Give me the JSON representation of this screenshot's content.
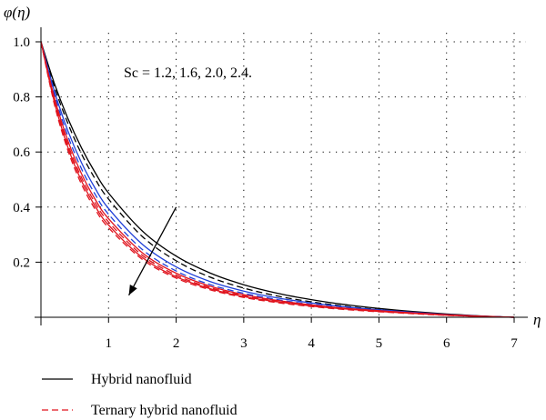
{
  "chart_data": {
    "type": "line",
    "ylabel": "φ(η)",
    "xlabel": "η",
    "xlim": [
      0,
      7
    ],
    "ylim": [
      0,
      1.05
    ],
    "x_ticks": [
      "1",
      "2",
      "3",
      "4",
      "5",
      "6",
      "7"
    ],
    "y_ticks": [
      "0.2",
      "0.4",
      "0.6",
      "0.8",
      "1.0"
    ],
    "grid": true,
    "annotation": "Sc = 1.2, 1.6, 2.0, 2.4.",
    "arrow": {
      "from": [
        2.0,
        0.4
      ],
      "to": [
        1.3,
        0.08
      ]
    },
    "colors": {
      "black": "#000000",
      "blue": "#1f3fd8",
      "red": "#e0141e"
    },
    "legend": [
      {
        "label": "Hybrid nanofluid",
        "style": "solid"
      },
      {
        "label": "Ternary hybrid nanofluid",
        "style": "dashed",
        "color": "#e0141e"
      }
    ],
    "x": [
      0,
      0.2,
      0.4,
      0.6,
      0.8,
      1,
      1.5,
      2,
      2.5,
      3,
      3.5,
      4,
      4.5,
      5,
      5.5,
      6,
      6.5,
      7
    ],
    "series": [
      {
        "fluid": "Hybrid nanofluid",
        "Sc": 1.2,
        "color": "#000000",
        "dash": "solid",
        "values": [
          1.0,
          0.848,
          0.721,
          0.615,
          0.526,
          0.451,
          0.313,
          0.222,
          0.161,
          0.118,
          0.087,
          0.064,
          0.046,
          0.032,
          0.021,
          0.012,
          0.005,
          0.0
        ]
      },
      {
        "fluid": "Ternary hybrid nanofluid",
        "Sc": 1.2,
        "color": "#000000",
        "dash": "dashed",
        "values": [
          1.0,
          0.836,
          0.703,
          0.593,
          0.503,
          0.429,
          0.293,
          0.205,
          0.146,
          0.106,
          0.077,
          0.056,
          0.04,
          0.028,
          0.018,
          0.01,
          0.004,
          0.0
        ]
      },
      {
        "fluid": "Hybrid nanofluid",
        "Sc": 1.6,
        "color": "#1f3fd8",
        "dash": "solid",
        "values": [
          1.0,
          0.82,
          0.676,
          0.561,
          0.469,
          0.395,
          0.265,
          0.183,
          0.13,
          0.095,
          0.07,
          0.052,
          0.038,
          0.027,
          0.018,
          0.01,
          0.004,
          0.0
        ]
      },
      {
        "fluid": "Ternary hybrid nanofluid",
        "Sc": 1.6,
        "color": "#1f3fd8",
        "dash": "dashed",
        "values": [
          1.0,
          0.808,
          0.657,
          0.539,
          0.447,
          0.374,
          0.246,
          0.168,
          0.119,
          0.087,
          0.064,
          0.047,
          0.034,
          0.024,
          0.016,
          0.009,
          0.004,
          0.0
        ]
      },
      {
        "fluid": "Hybrid nanofluid",
        "Sc": 2.0,
        "color": "#e0141e",
        "dash": "solid",
        "values": [
          1.0,
          0.796,
          0.64,
          0.521,
          0.429,
          0.358,
          0.234,
          0.16,
          0.113,
          0.082,
          0.061,
          0.045,
          0.033,
          0.024,
          0.016,
          0.009,
          0.004,
          0.0
        ]
      },
      {
        "fluid": "Ternary hybrid nanofluid",
        "Sc": 2.0,
        "color": "#e0141e",
        "dash": "dashed",
        "values": [
          1.0,
          0.786,
          0.627,
          0.507,
          0.416,
          0.346,
          0.225,
          0.153,
          0.108,
          0.078,
          0.058,
          0.043,
          0.031,
          0.022,
          0.015,
          0.008,
          0.003,
          0.0
        ]
      },
      {
        "fluid": "Hybrid nanofluid",
        "Sc": 2.4,
        "color": "#e0141e",
        "dash": "solid",
        "values": [
          1.0,
          0.78,
          0.616,
          0.495,
          0.404,
          0.335,
          0.217,
          0.147,
          0.104,
          0.075,
          0.056,
          0.041,
          0.03,
          0.021,
          0.014,
          0.008,
          0.003,
          0.0
        ]
      },
      {
        "fluid": "Ternary hybrid nanofluid",
        "Sc": 2.4,
        "color": "#e0141e",
        "dash": "dashed",
        "values": [
          1.0,
          0.772,
          0.605,
          0.483,
          0.393,
          0.325,
          0.21,
          0.142,
          0.1,
          0.072,
          0.053,
          0.039,
          0.028,
          0.02,
          0.013,
          0.007,
          0.003,
          0.0
        ]
      }
    ]
  }
}
